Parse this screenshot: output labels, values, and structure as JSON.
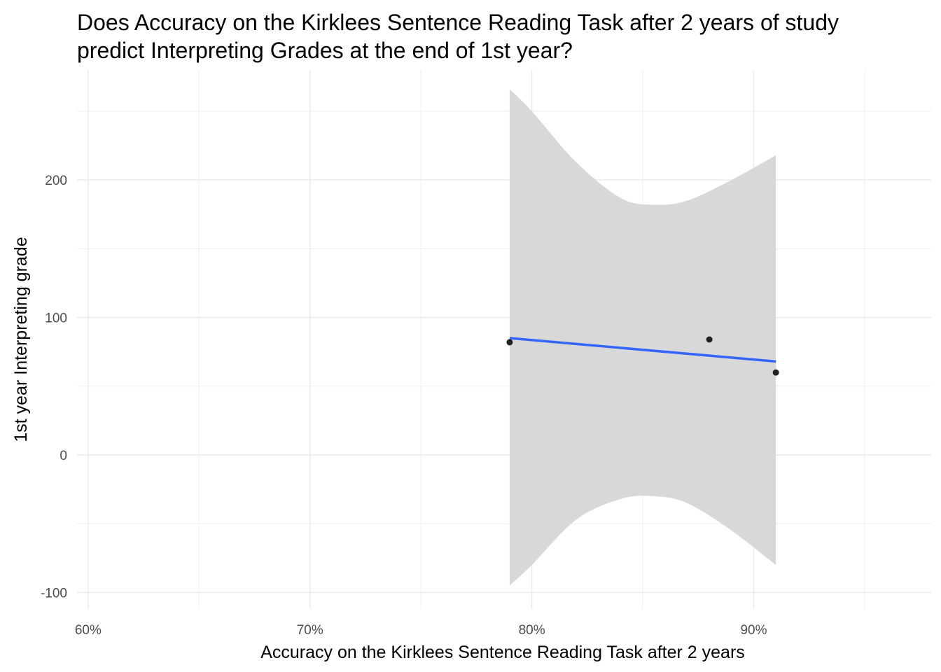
{
  "chart_data": {
    "type": "scatter",
    "title": "Does Accuracy on the Kirklees Sentence Reading Task after 2 years of study predict Interpreting Grades at the end of 1st year?",
    "title_lines": [
      "Does Accuracy on the Kirklees Sentence Reading Task after 2 years of study",
      "predict Interpreting Grades at the end of 1st year?"
    ],
    "xlabel": "Accuracy on the Kirklees Sentence Reading Task after 2 years",
    "ylabel": "1st year Interpreting grade",
    "xlim": [
      0.595,
      0.98
    ],
    "ylim": [
      -112,
      280
    ],
    "x_ticks": [
      0.6,
      0.7,
      0.8,
      0.9
    ],
    "x_tick_labels": [
      "60%",
      "70%",
      "80%",
      "90%"
    ],
    "y_ticks": [
      -100,
      0,
      100,
      200
    ],
    "y_tick_labels": [
      "-100",
      "0",
      "100",
      "200"
    ],
    "grid": true,
    "points": [
      {
        "x": 0.79,
        "y": 82
      },
      {
        "x": 0.88,
        "y": 84
      },
      {
        "x": 0.91,
        "y": 60
      }
    ],
    "fit_line": {
      "x": [
        0.79,
        0.91
      ],
      "y": [
        85,
        68
      ],
      "color": "#3366ff"
    },
    "confidence_band": {
      "x": [
        0.79,
        0.8,
        0.82,
        0.84,
        0.855,
        0.87,
        0.89,
        0.91
      ],
      "upper": [
        266,
        250,
        213,
        187,
        182,
        185,
        200,
        218
      ],
      "lower": [
        -95,
        -80,
        -47,
        -32,
        -30,
        -35,
        -55,
        -80
      ],
      "color": "#d6d6d6"
    },
    "point_color": "#222222",
    "panel_background": "#ffffff",
    "grid_color": "#ebebeb"
  }
}
